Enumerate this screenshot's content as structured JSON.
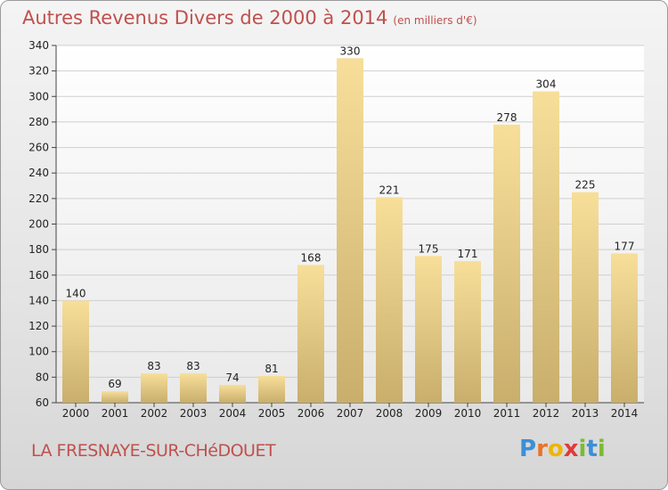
{
  "header": {
    "title": "Autres Revenus Divers de 2000 à 2014",
    "unit": "(en milliers d'€)"
  },
  "footer": {
    "town": "LA FRESNAYE-SUR-CHéDOUET",
    "logo": [
      "P",
      "r",
      "o",
      "x",
      "i",
      "t",
      "i"
    ]
  },
  "colors": {
    "title": "#c0504d",
    "bar_light": "#f7df9a",
    "bar_dark": "#c9ae6c",
    "grid": "#cfcfcf"
  },
  "chart_data": {
    "type": "bar",
    "categories": [
      "2000",
      "2001",
      "2002",
      "2003",
      "2004",
      "2005",
      "2006",
      "2007",
      "2008",
      "2009",
      "2010",
      "2011",
      "2012",
      "2013",
      "2014"
    ],
    "values": [
      140,
      69,
      83,
      83,
      74,
      81,
      168,
      330,
      221,
      175,
      171,
      278,
      304,
      225,
      177
    ],
    "ylim": [
      60,
      340
    ],
    "yticks": [
      60,
      80,
      100,
      120,
      140,
      160,
      180,
      200,
      220,
      240,
      260,
      280,
      300,
      320,
      340
    ],
    "grid": true,
    "data_labels": true
  }
}
